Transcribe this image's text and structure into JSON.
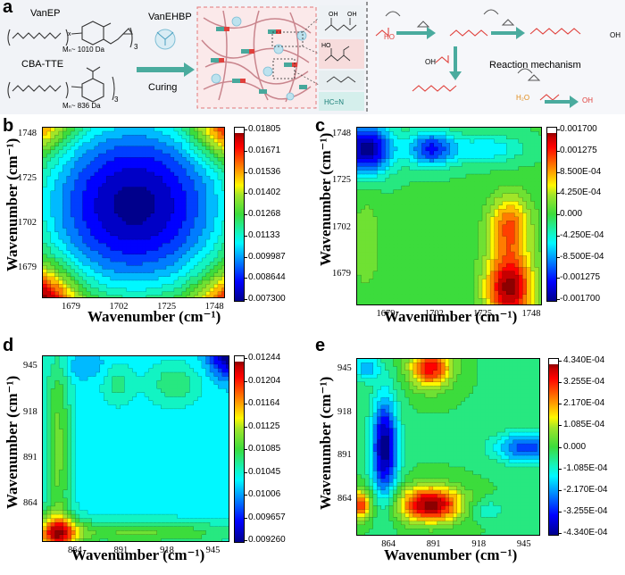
{
  "panel_a": {
    "letter": "a",
    "vanep_label": "VanEP",
    "vanep_mn": "Mₙ~ 1010 Da",
    "vanep_subscript": "3",
    "cba_label": "CBA-TTE",
    "cba_mn": "Mₙ~ 836 Da",
    "cba_subscript": "3",
    "x_index": "x",
    "vanehbp_label": "VanEHBP",
    "curing_label": "Curing",
    "reaction_mechanism": "Reaction mechanism",
    "imine_label": "HC=N",
    "oh_labels": [
      "OH",
      "OH",
      "HO",
      "HO",
      "OH",
      "OH",
      "OH"
    ],
    "water_label": "H₂O",
    "colors": {
      "accent_arrow": "#4aab9e",
      "ester_red": "#e0413c",
      "background_left": "#f0f2f6",
      "box_border": "#e2787a"
    }
  },
  "chart_data": [
    {
      "panel": "b",
      "type": "heatmap",
      "xlabel": "Wavenumber (cm⁻¹)",
      "ylabel": "Wavenumber (cm⁻¹)",
      "xticks": [
        "1679",
        "1702",
        "1725",
        "1748"
      ],
      "yticks": [
        "1748",
        "1725",
        "1702",
        "1679"
      ],
      "xlim": [
        1664,
        1752
      ],
      "ylim": [
        1664,
        1752
      ],
      "colorbar": [
        "0.01805",
        "0.01671",
        "0.01536",
        "0.01402",
        "0.01268",
        "0.01133",
        "0.009987",
        "0.008644",
        "0.007300"
      ],
      "vmin": 0.0073,
      "vmax": 0.01805
    },
    {
      "panel": "c",
      "type": "heatmap",
      "xlabel": "Wavenumber (cm⁻¹)",
      "ylabel": "Wavenumber (cm⁻¹)",
      "xticks": [
        "1679",
        "1702",
        "1725",
        "1748"
      ],
      "yticks": [
        "1748",
        "1725",
        "1702",
        "1679"
      ],
      "xlim": [
        1664,
        1752
      ],
      "ylim": [
        1664,
        1752
      ],
      "colorbar": [
        "0.001700",
        "0.001275",
        "8.500E-04",
        "4.250E-04",
        "0.000",
        "-4.250E-04",
        "-8.500E-04",
        "-0.001275",
        "-0.001700"
      ],
      "vmin": -0.0017,
      "vmax": 0.0017
    },
    {
      "panel": "d",
      "type": "heatmap",
      "xlabel": "Wavenumber (cm⁻¹)",
      "ylabel": "Wavenumber (cm⁻¹)",
      "xticks": [
        "864",
        "891",
        "918",
        "945"
      ],
      "yticks": [
        "945",
        "918",
        "891",
        "864"
      ],
      "xlim": [
        842,
        952
      ],
      "ylim": [
        842,
        952
      ],
      "colorbar": [
        "0.01244",
        "0.01204",
        "0.01164",
        "0.01125",
        "0.01085",
        "0.01045",
        "0.01006",
        "0.009657",
        "0.009260"
      ],
      "vmin": 0.00926,
      "vmax": 0.01244
    },
    {
      "panel": "e",
      "type": "heatmap",
      "xlabel": "Wavenumber (cm⁻¹)",
      "ylabel": "Wavenumber (cm⁻¹)",
      "xticks": [
        "864",
        "891",
        "918",
        "945"
      ],
      "yticks": [
        "945",
        "918",
        "891",
        "864"
      ],
      "xlim": [
        842,
        952
      ],
      "ylim": [
        842,
        952
      ],
      "colorbar": [
        "4.340E-04",
        "3.255E-04",
        "2.170E-04",
        "1.085E-04",
        "0.000",
        "-1.085E-04",
        "-2.170E-04",
        "-3.255E-04",
        "-4.340E-04"
      ],
      "vmin": -0.000434,
      "vmax": 0.000434
    }
  ]
}
